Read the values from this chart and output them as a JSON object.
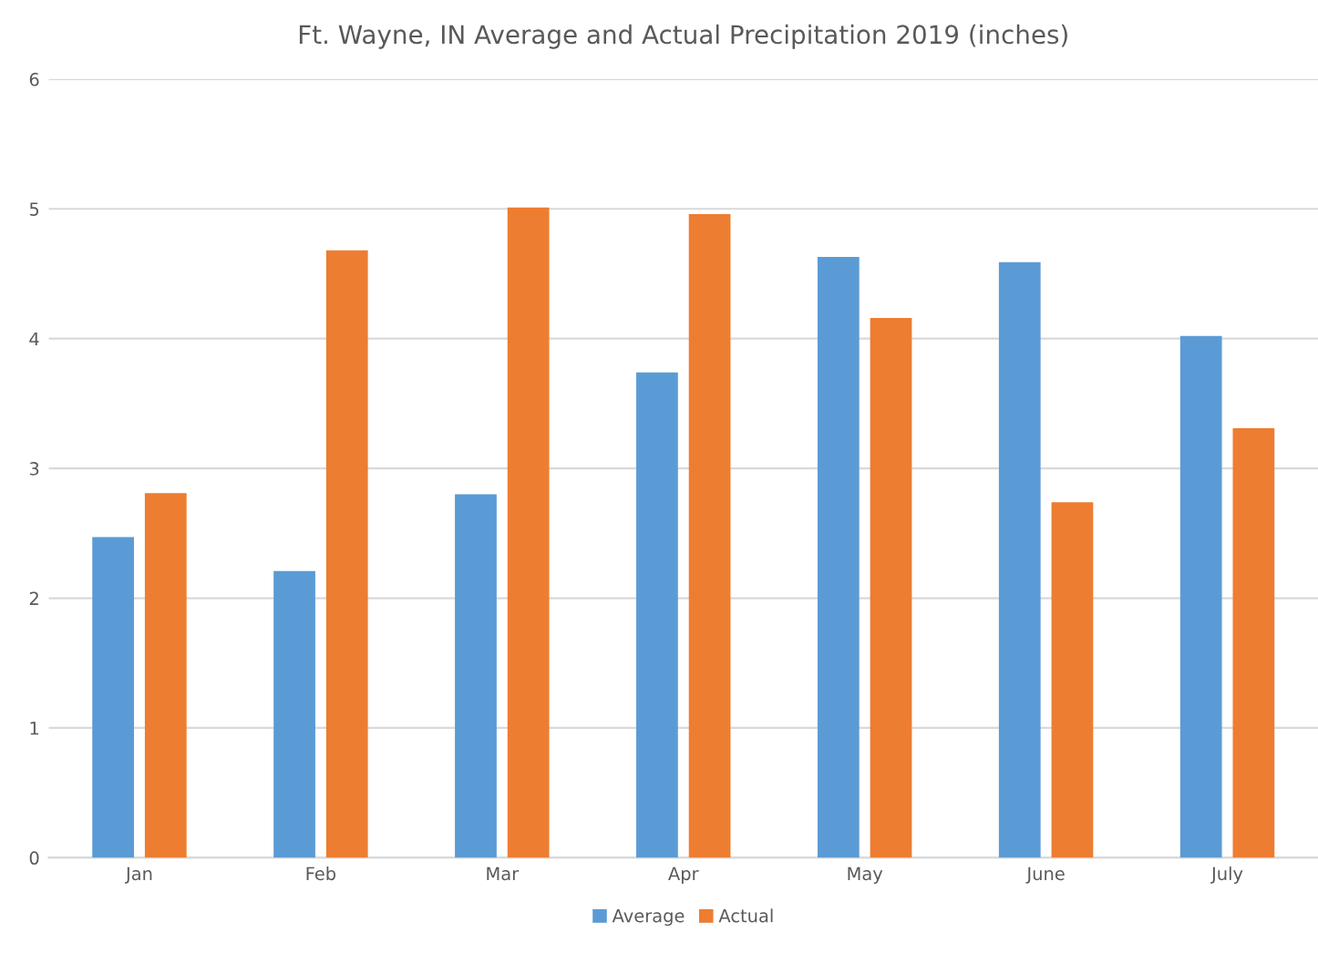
{
  "chart_data": {
    "type": "bar",
    "title": "Ft. Wayne, IN Average and Actual Precipitation 2019 (inches)",
    "categories": [
      "Jan",
      "Feb",
      "Mar",
      "Apr",
      "May",
      "June",
      "July"
    ],
    "series": [
      {
        "name": "Average",
        "color": "#5b9bd5",
        "values": [
          2.47,
          2.21,
          2.8,
          3.74,
          4.63,
          4.59,
          4.02
        ]
      },
      {
        "name": "Actual",
        "color": "#ed7d31",
        "values": [
          2.81,
          4.68,
          5.01,
          4.96,
          4.16,
          2.74,
          3.31
        ]
      }
    ],
    "ylim": [
      0,
      6
    ],
    "yticks": [
      0,
      1,
      2,
      3,
      4,
      5,
      6
    ],
    "grid": "y",
    "legend": "bottom"
  }
}
